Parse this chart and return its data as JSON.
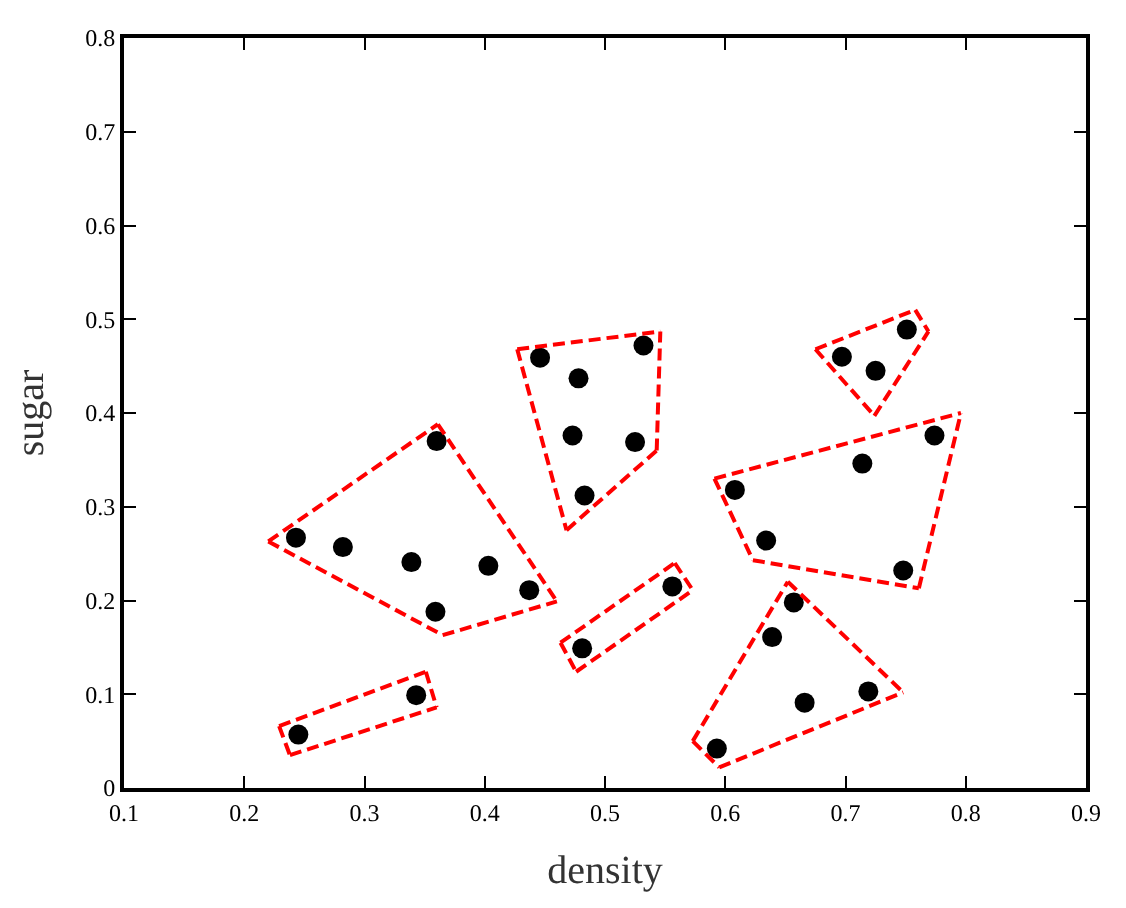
{
  "chart_data": {
    "type": "scatter",
    "xlabel": "density",
    "ylabel": "sugar",
    "xlim": [
      0.1,
      0.9
    ],
    "ylim": [
      0,
      0.8
    ],
    "xticks": [
      0.1,
      0.2,
      0.3,
      0.4,
      0.5,
      0.6,
      0.7,
      0.8,
      0.9
    ],
    "yticks": [
      0,
      0.1,
      0.2,
      0.3,
      0.4,
      0.5,
      0.6,
      0.7,
      0.8
    ],
    "series": [
      {
        "type": "scatter",
        "color": "#000000",
        "marker": "circle",
        "x": [
          0.697,
          0.774,
          0.634,
          0.608,
          0.556,
          0.403,
          0.481,
          0.437,
          0.666,
          0.243,
          0.245,
          0.343,
          0.639,
          0.657,
          0.36,
          0.593,
          0.719,
          0.359,
          0.339,
          0.282,
          0.748,
          0.714,
          0.483,
          0.478,
          0.525,
          0.751,
          0.532,
          0.473,
          0.725,
          0.446
        ],
        "values": [
          0.46,
          0.376,
          0.264,
          0.318,
          0.215,
          0.237,
          0.149,
          0.211,
          0.091,
          0.267,
          0.057,
          0.099,
          0.161,
          0.198,
          0.37,
          0.042,
          0.103,
          0.188,
          0.241,
          0.257,
          0.232,
          0.346,
          0.312,
          0.437,
          0.369,
          0.489,
          0.472,
          0.376,
          0.445,
          0.459
        ]
      },
      {
        "type": "line",
        "color": "#ff0000",
        "line_style": "dashed",
        "marker": "none",
        "x": [
          0.22,
          0.361
        ],
        "values": [
          0.263,
          0.388
        ]
      },
      {
        "type": "line",
        "color": "#ff0000",
        "line_style": "dashed",
        "marker": "none",
        "x": [
          0.361,
          0.46
        ],
        "values": [
          0.388,
          0.199
        ]
      },
      {
        "type": "line",
        "color": "#ff0000",
        "line_style": "dashed",
        "marker": "none",
        "x": [
          0.365,
          0.46
        ],
        "values": [
          0.163,
          0.199
        ]
      },
      {
        "type": "line",
        "color": "#ff0000",
        "line_style": "dashed",
        "marker": "none",
        "x": [
          0.22,
          0.365
        ],
        "values": [
          0.263,
          0.163
        ]
      },
      {
        "type": "line",
        "color": "#ff0000",
        "line_style": "dashed",
        "marker": "none",
        "x": [
          0.427,
          0.546
        ],
        "values": [
          0.468,
          0.487
        ]
      },
      {
        "type": "line",
        "color": "#ff0000",
        "line_style": "dashed",
        "marker": "none",
        "x": [
          0.543,
          0.546
        ],
        "values": [
          0.36,
          0.487
        ]
      },
      {
        "type": "line",
        "color": "#ff0000",
        "line_style": "dashed",
        "marker": "none",
        "x": [
          0.468,
          0.543
        ],
        "values": [
          0.275,
          0.36
        ]
      },
      {
        "type": "line",
        "color": "#ff0000",
        "line_style": "dashed",
        "marker": "none",
        "x": [
          0.427,
          0.468
        ],
        "values": [
          0.468,
          0.275
        ]
      },
      {
        "type": "line",
        "color": "#ff0000",
        "line_style": "dashed",
        "marker": "none",
        "x": [
          0.229,
          0.351
        ],
        "values": [
          0.066,
          0.124
        ]
      },
      {
        "type": "line",
        "color": "#ff0000",
        "line_style": "dashed",
        "marker": "none",
        "x": [
          0.351,
          0.36
        ],
        "values": [
          0.124,
          0.086
        ]
      },
      {
        "type": "line",
        "color": "#ff0000",
        "line_style": "dashed",
        "marker": "none",
        "x": [
          0.238,
          0.36
        ],
        "values": [
          0.035,
          0.086
        ]
      },
      {
        "type": "line",
        "color": "#ff0000",
        "line_style": "dashed",
        "marker": "none",
        "x": [
          0.229,
          0.238
        ],
        "values": [
          0.066,
          0.035
        ]
      },
      {
        "type": "line",
        "color": "#ff0000",
        "line_style": "dashed",
        "marker": "none",
        "x": [
          0.463,
          0.558
        ],
        "values": [
          0.155,
          0.24
        ]
      },
      {
        "type": "line",
        "color": "#ff0000",
        "line_style": "dashed",
        "marker": "none",
        "x": [
          0.558,
          0.573
        ],
        "values": [
          0.24,
          0.211
        ]
      },
      {
        "type": "line",
        "color": "#ff0000",
        "line_style": "dashed",
        "marker": "none",
        "x": [
          0.476,
          0.573
        ],
        "values": [
          0.124,
          0.211
        ]
      },
      {
        "type": "line",
        "color": "#ff0000",
        "line_style": "dashed",
        "marker": "none",
        "x": [
          0.463,
          0.476
        ],
        "values": [
          0.155,
          0.124
        ]
      },
      {
        "type": "line",
        "color": "#ff0000",
        "line_style": "dashed",
        "marker": "none",
        "x": [
          0.675,
          0.758
        ],
        "values": [
          0.468,
          0.51
        ]
      },
      {
        "type": "line",
        "color": "#ff0000",
        "line_style": "dashed",
        "marker": "none",
        "x": [
          0.758,
          0.769
        ],
        "values": [
          0.51,
          0.487
        ]
      },
      {
        "type": "line",
        "color": "#ff0000",
        "line_style": "dashed",
        "marker": "none",
        "x": [
          0.724,
          0.769
        ],
        "values": [
          0.397,
          0.487
        ]
      },
      {
        "type": "line",
        "color": "#ff0000",
        "line_style": "dashed",
        "marker": "none",
        "x": [
          0.675,
          0.724
        ],
        "values": [
          0.468,
          0.397
        ]
      },
      {
        "type": "line",
        "color": "#ff0000",
        "line_style": "dashed",
        "marker": "none",
        "x": [
          0.591,
          0.796
        ],
        "values": [
          0.33,
          0.4
        ]
      },
      {
        "type": "line",
        "color": "#ff0000",
        "line_style": "dashed",
        "marker": "none",
        "x": [
          0.761,
          0.796
        ],
        "values": [
          0.213,
          0.4
        ]
      },
      {
        "type": "line",
        "color": "#ff0000",
        "line_style": "dashed",
        "marker": "none",
        "x": [
          0.623,
          0.761
        ],
        "values": [
          0.243,
          0.213
        ]
      },
      {
        "type": "line",
        "color": "#ff0000",
        "line_style": "dashed",
        "marker": "none",
        "x": [
          0.591,
          0.623
        ],
        "values": [
          0.33,
          0.243
        ]
      },
      {
        "type": "line",
        "color": "#ff0000",
        "line_style": "dashed",
        "marker": "none",
        "x": [
          0.652,
          0.748
        ],
        "values": [
          0.22,
          0.102
        ]
      },
      {
        "type": "line",
        "color": "#ff0000",
        "line_style": "dashed",
        "marker": "none",
        "x": [
          0.595,
          0.748
        ],
        "values": [
          0.022,
          0.102
        ]
      },
      {
        "type": "line",
        "color": "#ff0000",
        "line_style": "dashed",
        "marker": "none",
        "x": [
          0.573,
          0.595
        ],
        "values": [
          0.05,
          0.022
        ]
      },
      {
        "type": "line",
        "color": "#ff0000",
        "line_style": "dashed",
        "marker": "none",
        "x": [
          0.573,
          0.652
        ],
        "values": [
          0.05,
          0.22
        ]
      }
    ]
  }
}
